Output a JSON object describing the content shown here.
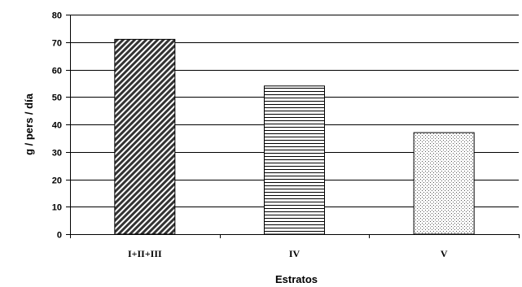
{
  "chart_data": {
    "type": "bar",
    "title": "",
    "xlabel": "Estratos",
    "ylabel": "g / pers / día",
    "categories": [
      "I+II+III",
      "IV",
      "V"
    ],
    "values": [
      71,
      54,
      37
    ],
    "ylim": [
      0,
      80
    ],
    "yticks": [
      0,
      10,
      20,
      30,
      40,
      50,
      60,
      70,
      80
    ],
    "grid": true,
    "legend": "none",
    "bar_patterns": [
      "diagonal-hatch",
      "horizontal-lines",
      "dotted"
    ],
    "colors": {
      "axis": "#000000",
      "grid": "#000000",
      "bar_outline": "#000000",
      "hatch_dark": "#333333",
      "dots": "#555555",
      "background": "#ffffff"
    }
  }
}
